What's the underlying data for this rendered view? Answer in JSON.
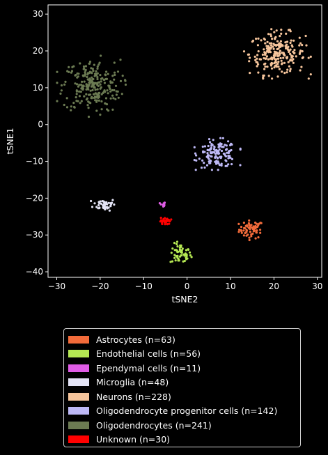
{
  "chart_data": {
    "type": "scatter",
    "xlabel": "tSNE2",
    "ylabel": "tSNE1",
    "xlim": [
      -32,
      31
    ],
    "ylim": [
      -41.5,
      32.5
    ],
    "xticks": [
      -30,
      -20,
      -10,
      0,
      10,
      20,
      30
    ],
    "yticks": [
      -40,
      -30,
      -20,
      -10,
      0,
      10,
      20,
      30
    ],
    "grid": false,
    "legend_placement": "below plot",
    "background": "#000000",
    "series": [
      {
        "name": "Astrocytes (n=63)",
        "color": "#f26b3a",
        "n": 63,
        "center": [
          14.8,
          -28.5
        ],
        "spread": [
          1.4,
          1.2
        ]
      },
      {
        "name": "Endothelial cells (n=56)",
        "color": "#b5e853",
        "n": 56,
        "center": [
          -1.5,
          -35.2
        ],
        "spread": [
          1.2,
          1.4
        ]
      },
      {
        "name": "Ependymal cells (n=11)",
        "color": "#e05ce6",
        "n": 11,
        "center": [
          -5.6,
          -21.8
        ],
        "spread": [
          0.3,
          0.4
        ]
      },
      {
        "name": "Microglia (n=48)",
        "color": "#e3e3f5",
        "n": 48,
        "center": [
          -19.0,
          -21.7
        ],
        "spread": [
          1.3,
          0.8
        ]
      },
      {
        "name": "Neurons (n=228)",
        "color": "#f5c49b",
        "n": 228,
        "center": [
          20.8,
          19.2
        ],
        "spread": [
          3.2,
          2.8
        ]
      },
      {
        "name": "Oligodendrocyte progenitor cells (n=142)",
        "color": "#bdb8f5",
        "n": 142,
        "center": [
          7.0,
          -8.0
        ],
        "spread": [
          2.2,
          1.8
        ]
      },
      {
        "name": "Oligodendrocytes (n=241)",
        "color": "#6b7a52",
        "n": 241,
        "center": [
          -22.0,
          10.5
        ],
        "spread": [
          3.3,
          3.5
        ]
      },
      {
        "name": "Unknown (n=30)",
        "color": "#ff0000",
        "n": 30,
        "center": [
          -5.0,
          -26.3
        ],
        "spread": [
          0.6,
          0.5
        ]
      }
    ]
  }
}
